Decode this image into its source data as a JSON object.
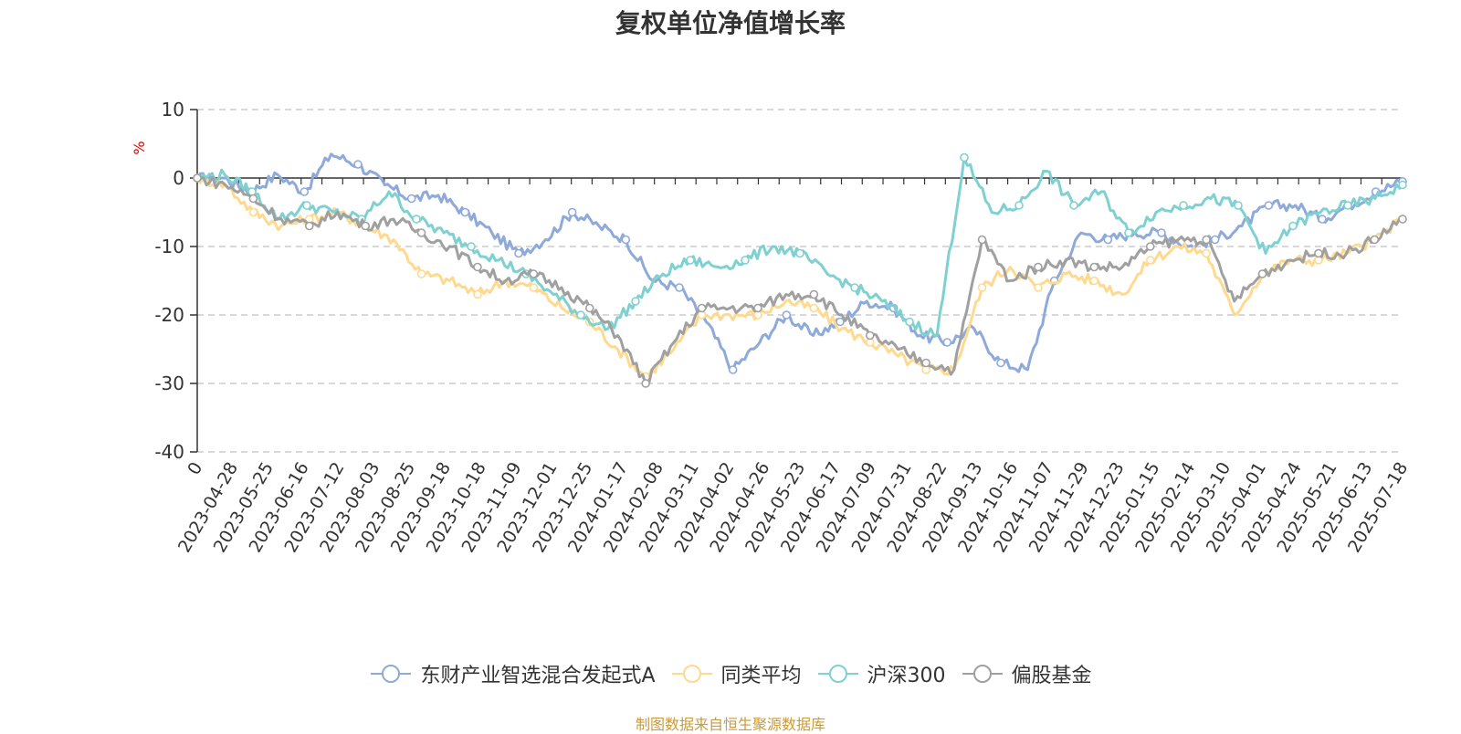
{
  "source_note": "制图数据来自恒生聚源数据库",
  "chart_data": {
    "type": "line",
    "title": "复权单位净值增长率",
    "ylabel": "%",
    "ylim": [
      -40,
      10
    ],
    "yticks": [
      10,
      0,
      -10,
      -20,
      -30,
      -40
    ],
    "grid": true,
    "legend_position": "bottom",
    "x_tick_labels": [
      "0",
      "2023-04-28",
      "2023-05-25",
      "2023-06-16",
      "2023-07-12",
      "2023-08-03",
      "2023-08-25",
      "2023-09-18",
      "2023-10-18",
      "2023-11-09",
      "2023-12-01",
      "2023-12-25",
      "2024-01-17",
      "2024-02-08",
      "2024-03-11",
      "2024-04-02",
      "2024-04-26",
      "2024-05-23",
      "2024-06-17",
      "2024-07-09",
      "2024-07-31",
      "2024-08-22",
      "2024-09-13",
      "2024-10-16",
      "2024-11-07",
      "2024-11-29",
      "2024-12-23",
      "2025-01-15",
      "2025-02-14",
      "2025-03-10",
      "2025-04-01",
      "2025-04-24",
      "2025-05-21",
      "2025-06-13",
      "2025-07-18"
    ],
    "series": [
      {
        "name": "东财产业智选混合发起式A",
        "color": "#8eaadb",
        "values": [
          0,
          0,
          -2,
          0.5,
          -2,
          3.5,
          2,
          -1,
          -3,
          -2.5,
          -5,
          -8,
          -11,
          -9,
          -5,
          -7,
          -9,
          -15,
          -16,
          -21,
          -28,
          -24,
          -20,
          -23,
          -21,
          -18,
          -19,
          -23,
          -24,
          -22,
          -27,
          -28,
          -15,
          -8,
          -9,
          -8,
          -8,
          -10,
          -9,
          -7,
          -4,
          -4,
          -6,
          -4,
          -2,
          -0.5
        ]
      },
      {
        "name": "同类平均",
        "color": "#ffd98e",
        "values": [
          0,
          -1,
          -5,
          -7,
          -6,
          -5,
          -7,
          -9,
          -14,
          -15,
          -17,
          -15,
          -16,
          -19,
          -21,
          -25,
          -29,
          -25,
          -20,
          -20,
          -20,
          -18,
          -19,
          -22,
          -24,
          -26,
          -28,
          -28,
          -16,
          -13,
          -16,
          -14,
          -15,
          -17,
          -12,
          -10,
          -11,
          -20,
          -14,
          -12,
          -12,
          -11,
          -9,
          -6
        ]
      },
      {
        "name": "沪深300",
        "color": "#7fd1d1",
        "values": [
          0,
          0.5,
          -2,
          -6,
          -4,
          -5,
          -6,
          -2,
          -6,
          -8,
          -10,
          -12,
          -14,
          -17,
          -20,
          -22,
          -18,
          -14,
          -12,
          -13,
          -12,
          -10,
          -11,
          -14,
          -16,
          -18,
          -21,
          -23,
          3,
          -5,
          -4,
          1,
          -4,
          -2,
          -8,
          -5,
          -4,
          -3,
          -4,
          -11,
          -7,
          -5,
          -4,
          -3,
          -1
        ]
      },
      {
        "name": "偏股基金",
        "color": "#a0a0a0",
        "values": [
          0,
          -1,
          -3,
          -6,
          -7,
          -5,
          -7,
          -6,
          -8,
          -10,
          -13,
          -15,
          -14,
          -16,
          -19,
          -23,
          -30,
          -24,
          -19,
          -19,
          -19,
          -17,
          -17,
          -20,
          -23,
          -25,
          -27,
          -28,
          -9,
          -15,
          -13,
          -12,
          -13,
          -13,
          -10,
          -9,
          -9,
          -18,
          -14,
          -12,
          -11,
          -11,
          -9,
          -6
        ]
      }
    ]
  }
}
